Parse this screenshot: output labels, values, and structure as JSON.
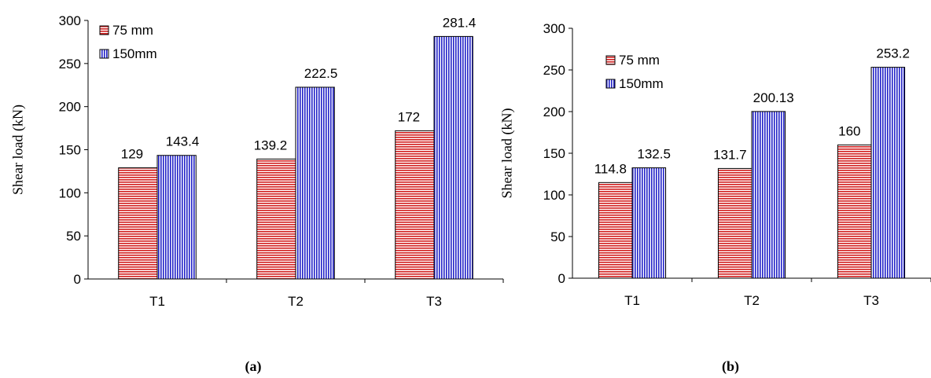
{
  "panels": [
    {
      "caption": "(a)",
      "chart_data": {
        "type": "bar",
        "categories": [
          "T1",
          "T2",
          "T3"
        ],
        "series": [
          {
            "name": "75 mm",
            "values": [
              129,
              139.2,
              172
            ],
            "labels": [
              "129",
              "139.2",
              "172"
            ],
            "color": "#d21f1f",
            "pattern": "horizontal-lines"
          },
          {
            "name": "150mm",
            "values": [
              143.4,
              222.5,
              281.4
            ],
            "labels": [
              "143.4",
              "222.5",
              "281.4"
            ],
            "color": "#2323c8",
            "pattern": "vertical-lines"
          }
        ],
        "yticks": [
          "0",
          "50",
          "100",
          "150",
          "200",
          "250",
          "300"
        ],
        "ylim": [
          0,
          300
        ],
        "ylabel": "Shear load (kN)",
        "xlabel": "",
        "grid": false,
        "legend": "top-left"
      }
    },
    {
      "caption": "(b)",
      "chart_data": {
        "type": "bar",
        "categories": [
          "T1",
          "T2",
          "T3"
        ],
        "series": [
          {
            "name": "75 mm",
            "values": [
              114.8,
              131.7,
              160
            ],
            "labels": [
              "114.8",
              "131.7",
              "160"
            ],
            "color": "#d21f1f",
            "pattern": "horizontal-lines"
          },
          {
            "name": "150mm",
            "values": [
              132.5,
              200.13,
              253.2
            ],
            "labels": [
              "132.5",
              "200.13",
              "253.2"
            ],
            "color": "#2323c8",
            "pattern": "vertical-lines"
          }
        ],
        "yticks": [
          "0",
          "50",
          "100",
          "150",
          "200",
          "250",
          "300"
        ],
        "ylim": [
          0,
          300
        ],
        "ylabel": "Shear load (kN)",
        "xlabel": "",
        "grid": false,
        "legend": "top-left"
      }
    }
  ]
}
